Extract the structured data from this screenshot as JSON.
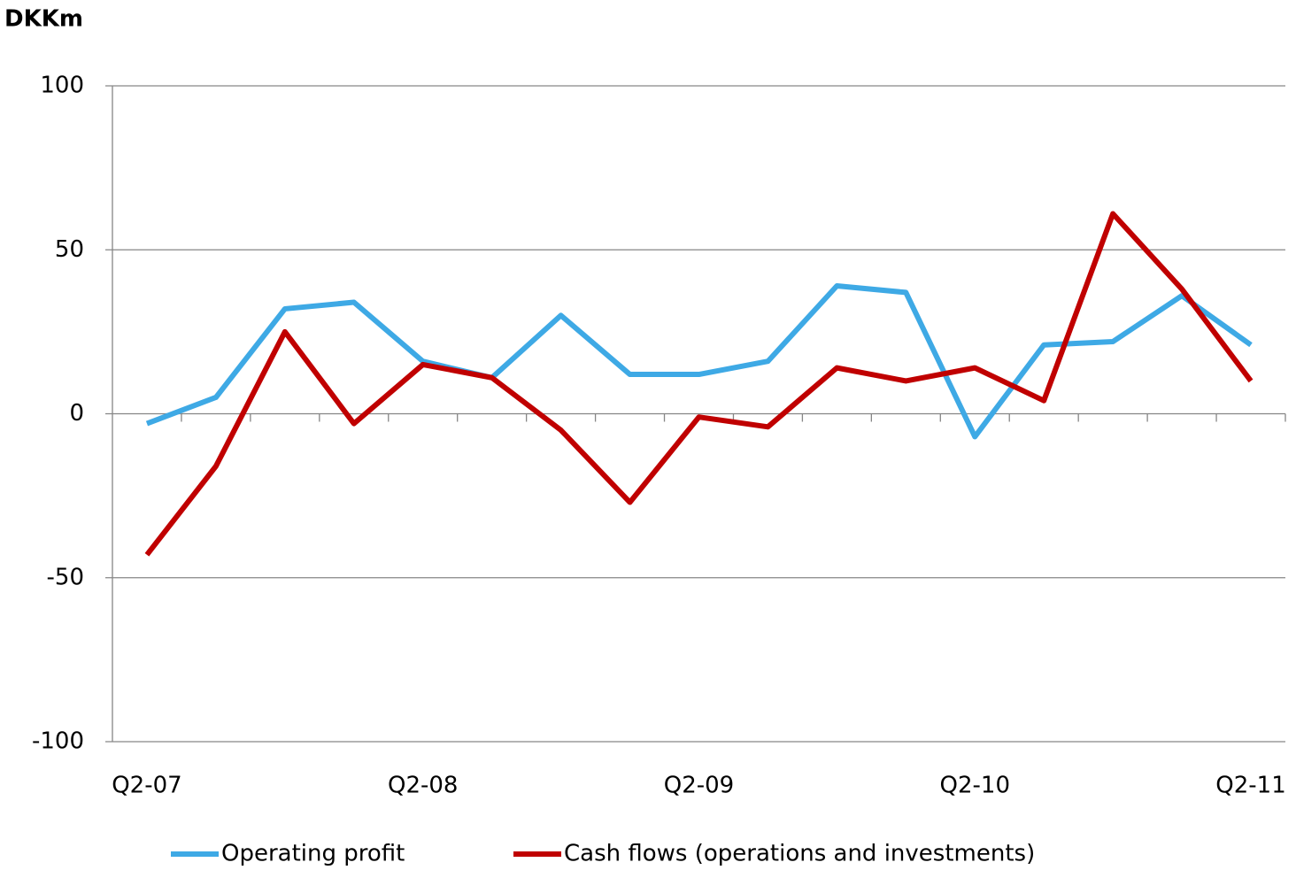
{
  "chart_data": {
    "type": "line",
    "title": "DKKm",
    "categories": [
      "Q2-07",
      null,
      null,
      null,
      "Q2-08",
      null,
      null,
      null,
      "Q2-09",
      null,
      null,
      null,
      "Q2-10",
      null,
      null,
      null,
      "Q2-11"
    ],
    "series": [
      {
        "name": "Operating profit",
        "color": "#3ea9e5",
        "values": [
          -3,
          5,
          32,
          34,
          16,
          11,
          30,
          12,
          12,
          16,
          39,
          37,
          -7,
          21,
          22,
          36,
          21
        ]
      },
      {
        "name": "Cash flows (operations and investments)",
        "color": "#c00000",
        "values": [
          -43,
          -16,
          25,
          -3,
          15,
          11,
          -5,
          -27,
          -1,
          -4,
          14,
          10,
          14,
          4,
          61,
          38,
          10
        ]
      }
    ],
    "ylim": [
      -100,
      100
    ],
    "yticks": [
      -100,
      -50,
      0,
      50,
      100
    ],
    "grid": true,
    "legend": "bottom"
  }
}
